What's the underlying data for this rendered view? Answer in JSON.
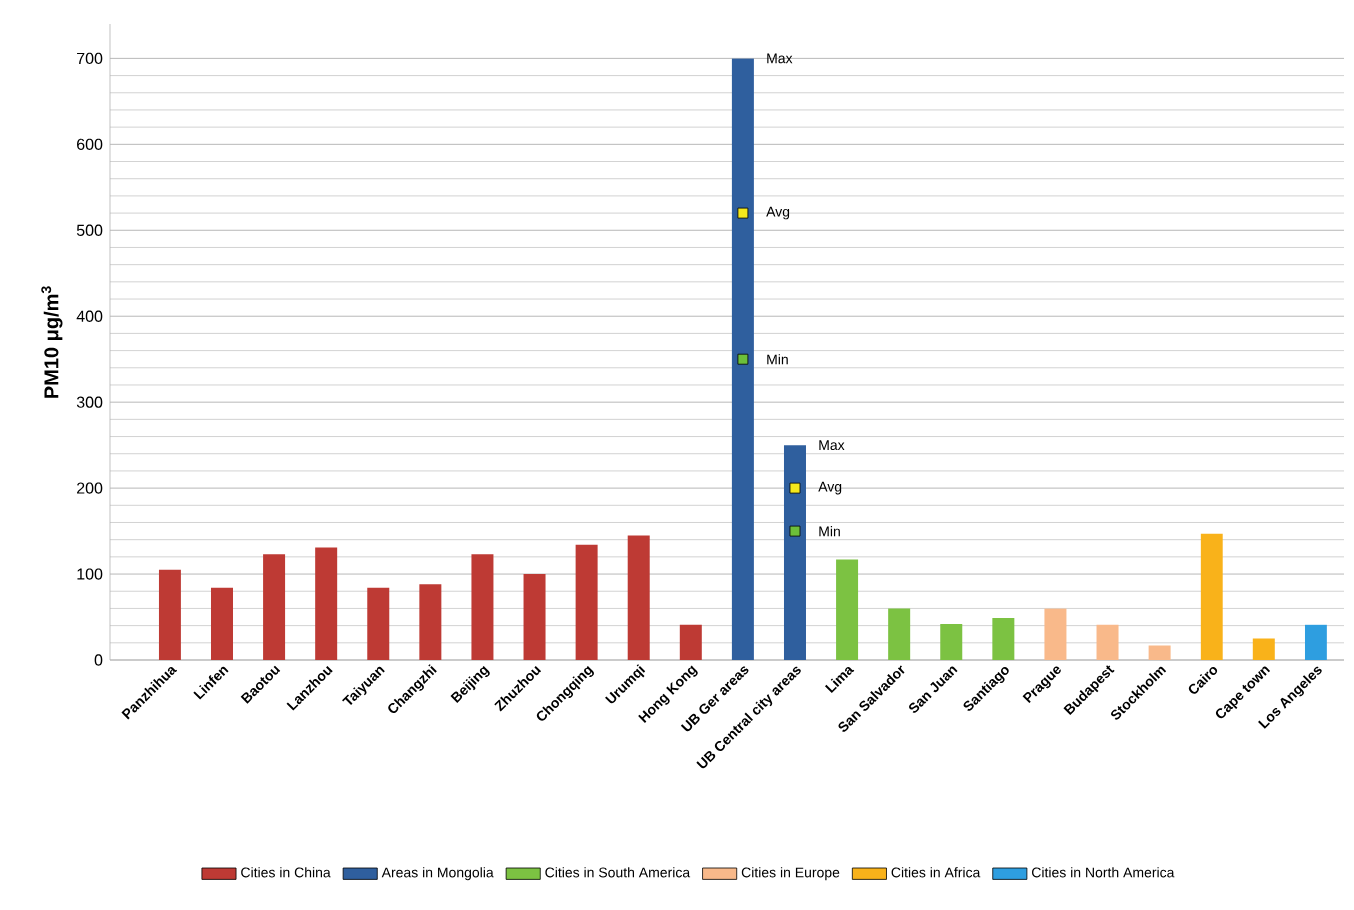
{
  "chart_data": {
    "type": "bar",
    "ylabel": "PM10 μg/m$^{3}$",
    "categories": [
      "Panzhihua",
      "Linfen",
      "Baotou",
      "Lanzhou",
      "Taiyuan",
      "Changzhi",
      "Beijing",
      "Zhuzhou",
      "Chongqing",
      "Urumqi",
      "Hong Kong",
      "UB Ger areas",
      "UB Central city areas",
      "Lima",
      "San Salvador",
      "San Juan",
      "Santiago",
      "Prague",
      "Budapest",
      "Stockholm",
      "Cairo",
      "Cape town",
      "Los Angeles"
    ],
    "series": [
      {
        "name": "Cities in China",
        "color": "#be3a34",
        "values": [
          105,
          84,
          123,
          131,
          84,
          88,
          123,
          100,
          134,
          145,
          41,
          null,
          null,
          null,
          null,
          null,
          null,
          null,
          null,
          null,
          null,
          null,
          null
        ]
      },
      {
        "name": "Areas in Mongolia",
        "color": "#2f5f9e",
        "values": [
          null,
          null,
          null,
          null,
          null,
          null,
          null,
          null,
          null,
          null,
          null,
          700,
          250,
          null,
          null,
          null,
          null,
          null,
          null,
          null,
          null,
          null,
          null
        ]
      },
      {
        "name": "Cities in South America",
        "color": "#7cc242",
        "values": [
          null,
          null,
          null,
          null,
          null,
          null,
          null,
          null,
          null,
          null,
          null,
          null,
          null,
          117,
          60,
          42,
          49,
          null,
          null,
          null,
          null,
          null,
          null
        ]
      },
      {
        "name": "Cities in Europe",
        "color": "#f9b98a",
        "values": [
          null,
          null,
          null,
          null,
          null,
          null,
          null,
          null,
          null,
          null,
          null,
          null,
          null,
          null,
          null,
          null,
          null,
          60,
          41,
          17,
          null,
          null,
          null
        ]
      },
      {
        "name": "Cities in Africa",
        "color": "#f9b21a",
        "values": [
          null,
          null,
          null,
          null,
          null,
          null,
          null,
          null,
          null,
          null,
          null,
          null,
          null,
          null,
          null,
          null,
          null,
          null,
          null,
          null,
          147,
          25,
          null
        ]
      },
      {
        "name": "Cities in North America",
        "color": "#2e9ee0",
        "values": [
          null,
          null,
          null,
          null,
          null,
          null,
          null,
          null,
          null,
          null,
          null,
          null,
          null,
          null,
          null,
          null,
          null,
          null,
          null,
          null,
          null,
          null,
          41
        ]
      },
      {
        "type": "scatter",
        "marker": "square",
        "color": "#f4e81c",
        "x": [
          "UB Ger areas",
          "UB Central city areas"
        ],
        "values": [
          520,
          200
        ]
      },
      {
        "type": "scatter",
        "marker": "square",
        "color": "#6cbf3a",
        "x": [
          "UB Ger areas",
          "UB Central city areas"
        ],
        "values": [
          350,
          150
        ]
      }
    ],
    "annotations": [
      {
        "text": "Max",
        "x": "UB Ger areas",
        "y": 700
      },
      {
        "text": "Avg",
        "x": "UB Ger areas",
        "y": 520
      },
      {
        "text": "Min",
        "x": "UB Ger areas",
        "y": 350
      },
      {
        "text": "Max",
        "x": "UB Central city areas",
        "y": 250
      },
      {
        "text": "Avg",
        "x": "UB Central city areas",
        "y": 200
      },
      {
        "text": "Min",
        "x": "UB Central city areas",
        "y": 150
      }
    ],
    "ylim": [
      0,
      740
    ],
    "yticks": [
      0,
      100,
      200,
      300,
      400,
      500,
      600,
      700
    ],
    "grid": true,
    "legend": "bottom"
  }
}
